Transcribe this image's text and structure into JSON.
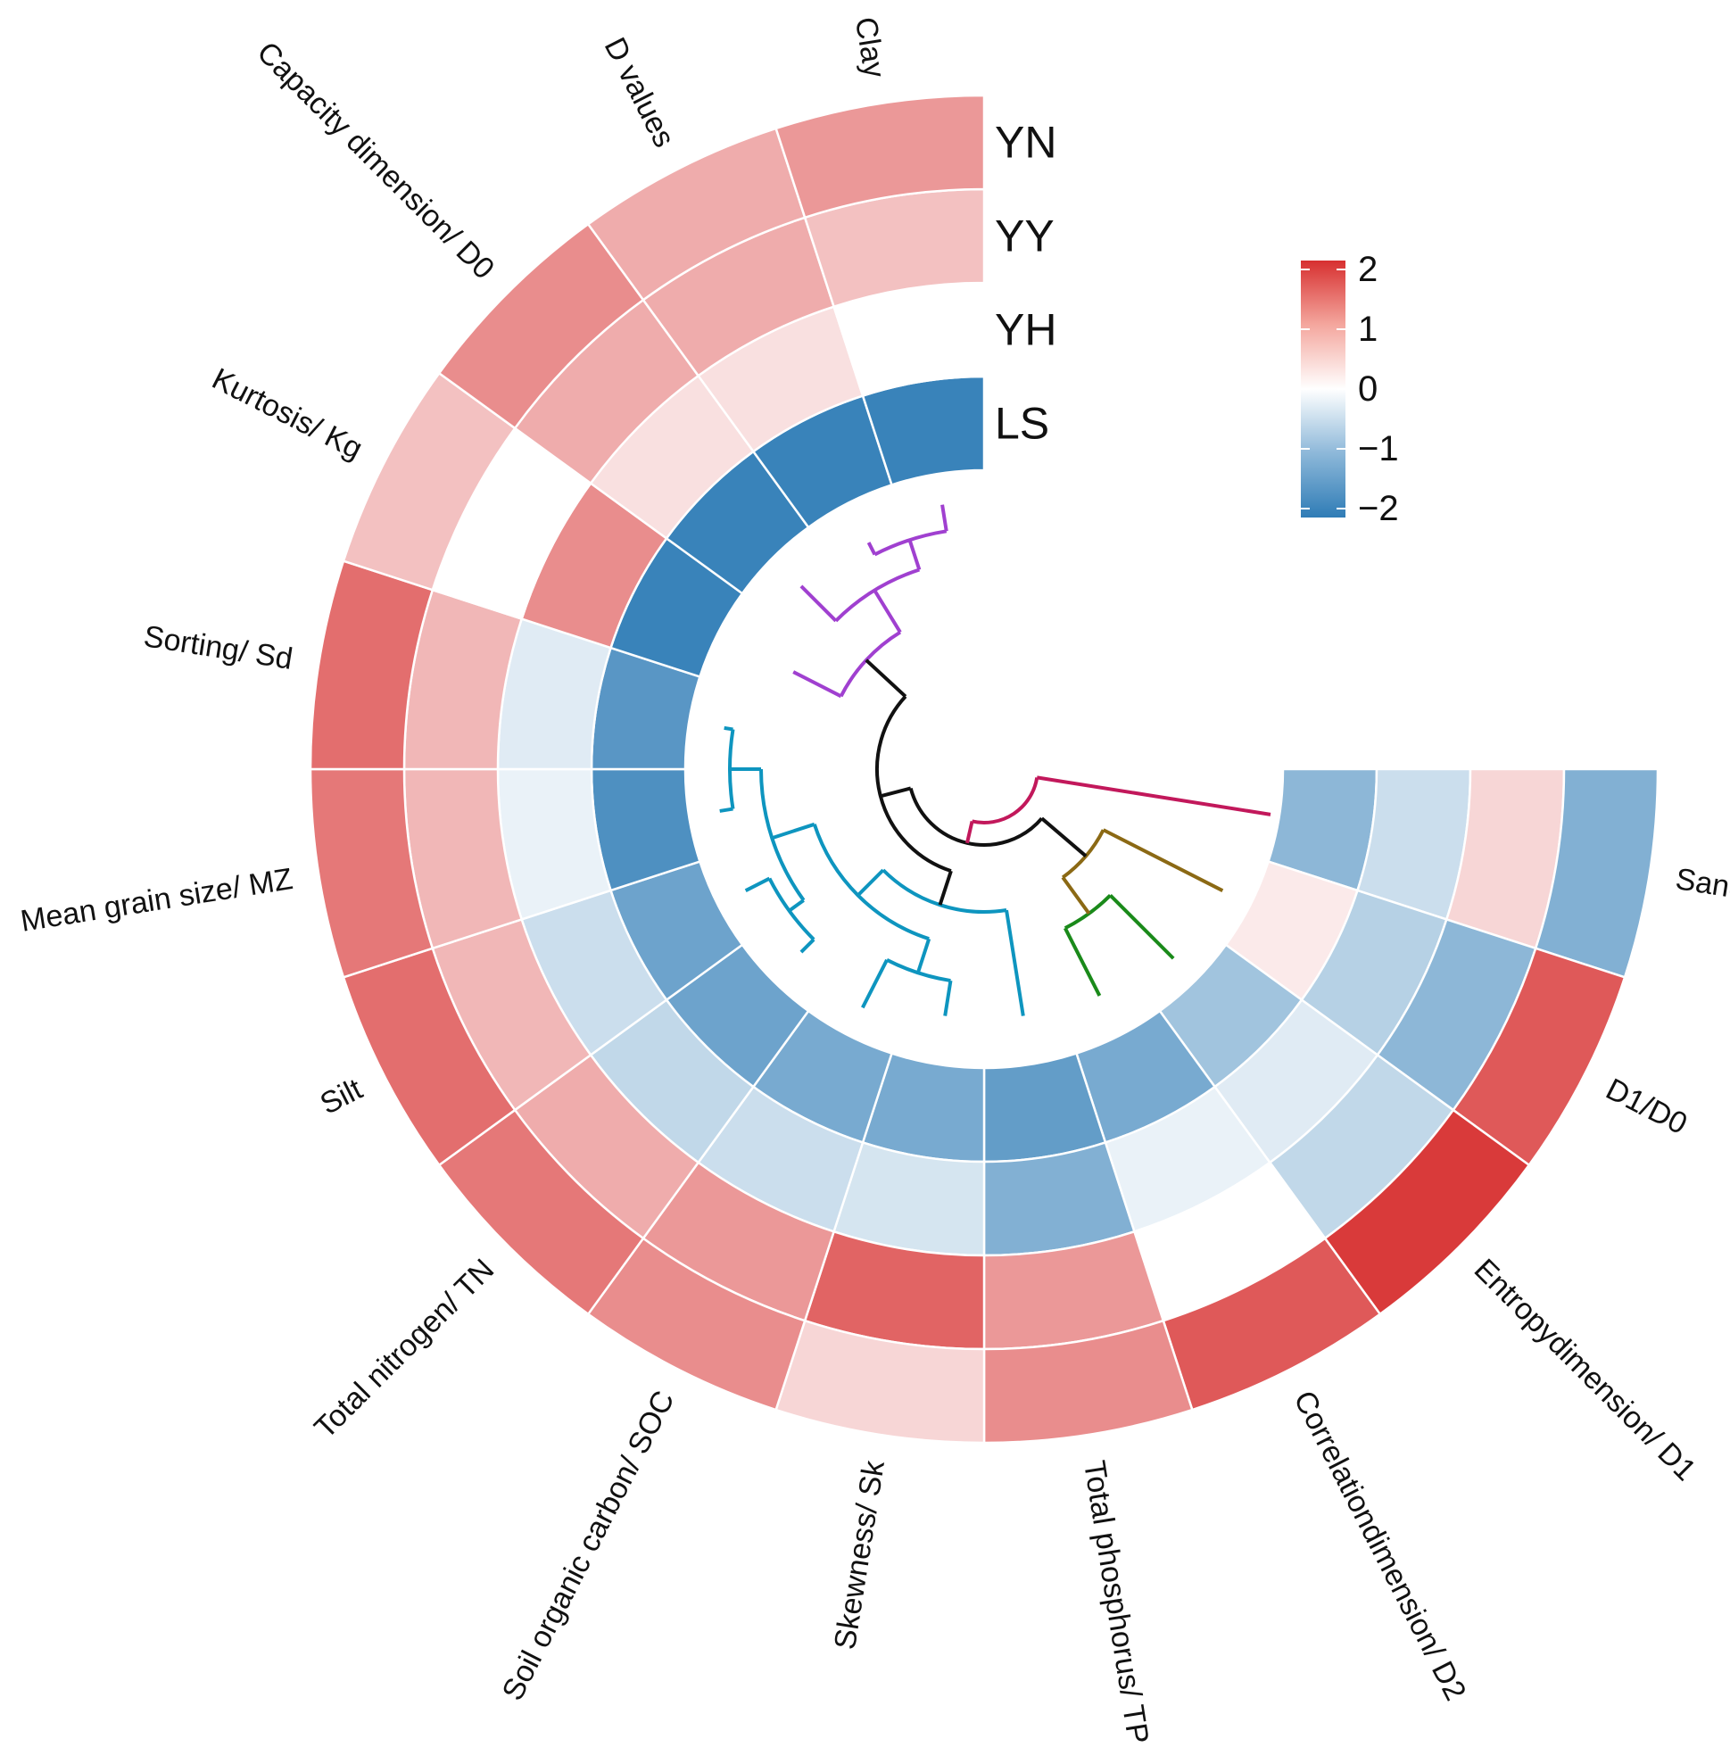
{
  "chart_data": {
    "type": "heatmap",
    "layout": "circular",
    "title": "",
    "rings": [
      "YN",
      "YY",
      "YH",
      "LS"
    ],
    "variables": [
      "Sand",
      "D1/D0",
      "Entropydimension/ D1",
      "Correlationdimension/ D2",
      "Total phosphorus/ TP",
      "Skewness/ Sk",
      "Soil organic carbon/ SOC",
      "Total nitrogen/ TN",
      "Silt",
      "Mean grain size/ MZ",
      "Sorting/ Sd",
      "Kurtosis/ Kg",
      "Capacity dimension/ D0",
      "D values",
      "Clay"
    ],
    "values": {
      "YN": [
        -1.2,
        1.6,
        1.9,
        1.6,
        1.1,
        0.4,
        1.1,
        1.3,
        1.4,
        1.3,
        1.4,
        0.6,
        1.1,
        0.8,
        1.0
      ],
      "YY": [
        0.4,
        -1.1,
        -0.6,
        0.0,
        1.0,
        1.5,
        1.0,
        0.8,
        0.7,
        0.7,
        0.7,
        0.0,
        0.8,
        0.8,
        0.6
      ],
      "YH": [
        -0.5,
        -0.7,
        -0.3,
        -0.2,
        -1.2,
        -0.4,
        -0.5,
        -0.6,
        -0.5,
        -0.2,
        -0.3,
        1.1,
        0.3,
        0.3,
        0.0
      ],
      "LS": [
        -1.1,
        0.2,
        -0.9,
        -1.3,
        -1.5,
        -1.3,
        -1.3,
        -1.4,
        -1.4,
        -1.7,
        -1.6,
        -1.9,
        -1.9,
        -1.9,
        -1.9
      ]
    },
    "color_scale": {
      "min": -2,
      "max": 2,
      "ticks": [
        "2",
        "1",
        "0",
        "−1",
        "−2"
      ],
      "colors": [
        "#2F7CB6",
        "#FFFFFF",
        "#D73030"
      ]
    },
    "dendrogram": {
      "clusters": [
        {
          "color": "#C2185B",
          "members": [
            "Sand"
          ]
        },
        {
          "color": "#8B6914",
          "members": [
            "D1/D0"
          ]
        },
        {
          "color": "#1A8A1A",
          "members": [
            "Entropydimension/ D1",
            "Correlationdimension/ D2"
          ]
        },
        {
          "color": "#0E95BF",
          "members": [
            "Total phosphorus/ TP",
            "Skewness/ Sk",
            "Soil organic carbon/ SOC",
            "Total nitrogen/ TN",
            "Silt",
            "Mean grain size/ MZ",
            "Sorting/ Sd"
          ]
        },
        {
          "color": "#A040D0",
          "members": [
            "Kurtosis/ Kg",
            "Capacity dimension/ D0",
            "D values",
            "Clay"
          ]
        }
      ]
    },
    "legend_position": "top-right"
  }
}
